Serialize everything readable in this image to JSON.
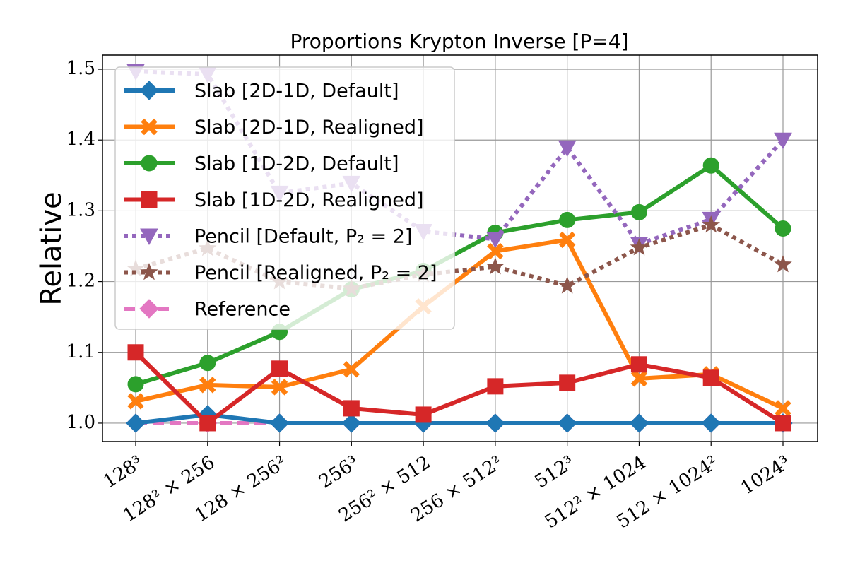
{
  "chart_data": {
    "type": "line",
    "title": "Proportions Krypton Inverse [P=4]",
    "y_label": "Relative",
    "categories": [
      "128³",
      "128² × 256",
      "128 × 256²",
      "256³",
      "256² × 512",
      "256 × 512²",
      "512³",
      "512² × 1024",
      "512 × 1024²",
      "1024³"
    ],
    "series": [
      {
        "name": "Reference",
        "color": "#e377c2",
        "marker": "diamond",
        "linestyle": "dashed",
        "values": [
          1.0,
          1.0,
          1.0,
          1.0,
          1.0,
          1.0,
          1.0,
          1.0,
          1.0,
          1.0
        ]
      },
      {
        "name": "Slab [2D-1D, Default]",
        "color": "#1f77b4",
        "marker": "diamond",
        "linestyle": "solid",
        "values": [
          1.0,
          1.012,
          1.0,
          1.0,
          1.0,
          1.0,
          1.0,
          1.0,
          1.0,
          1.0
        ]
      },
      {
        "name": "Slab [2D-1D, Realigned]",
        "color": "#ff7f0e",
        "marker": "x",
        "linestyle": "solid",
        "values": [
          1.031,
          1.054,
          1.051,
          1.076,
          1.165,
          1.243,
          1.259,
          1.063,
          1.069,
          1.021
        ]
      },
      {
        "name": "Slab [1D-2D, Default]",
        "color": "#2ca02c",
        "marker": "circle",
        "linestyle": "solid",
        "values": [
          1.055,
          1.085,
          1.129,
          1.189,
          1.215,
          1.269,
          1.287,
          1.298,
          1.364,
          1.275
        ]
      },
      {
        "name": "Slab [1D-2D, Realigned]",
        "color": "#d62728",
        "marker": "square",
        "linestyle": "solid",
        "values": [
          1.1,
          1.0,
          1.077,
          1.021,
          1.012,
          1.052,
          1.057,
          1.083,
          1.064,
          1.0
        ]
      },
      {
        "name": "Pencil [Default, P₂ = 2]",
        "color": "#9467bd",
        "marker": "triangle-down",
        "linestyle": "dotted",
        "values": [
          1.497,
          1.493,
          1.325,
          1.339,
          1.271,
          1.26,
          1.389,
          1.253,
          1.288,
          1.4
        ]
      },
      {
        "name": "Pencil [Realigned, P₂ = 2]",
        "color": "#8c564b",
        "marker": "star",
        "linestyle": "dotted",
        "values": [
          1.218,
          1.247,
          1.2,
          1.19,
          1.21,
          1.221,
          1.194,
          1.248,
          1.28,
          1.224
        ]
      }
    ],
    "legend_order": [
      1,
      2,
      3,
      4,
      5,
      6,
      0
    ],
    "legend": "upper left",
    "ylim": [
      0.974,
      1.52
    ],
    "yticks": [
      {
        "value": 1,
        "label": "1.0"
      },
      1.1,
      1.2,
      1.3,
      1.4,
      1.5
    ],
    "grid": true
  }
}
